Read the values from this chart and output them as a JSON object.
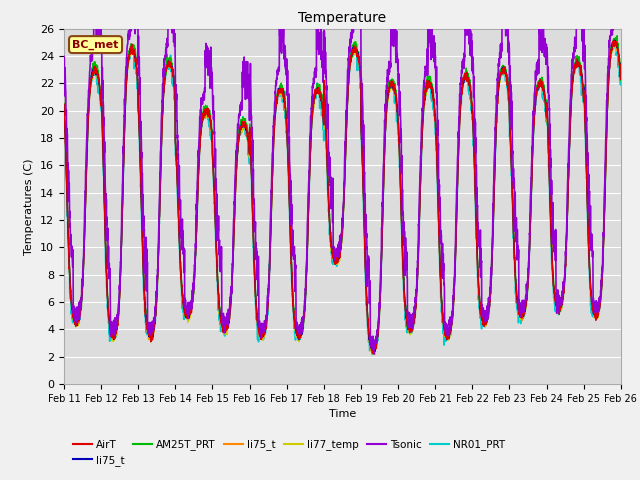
{
  "title": "Temperature",
  "xlabel": "Time",
  "ylabel": "Temperatures (C)",
  "ylim": [
    0,
    26
  ],
  "yticks": [
    0,
    2,
    4,
    6,
    8,
    10,
    12,
    14,
    16,
    18,
    20,
    22,
    24,
    26
  ],
  "date_labels": [
    "Feb 11",
    "Feb 12",
    "Feb 13",
    "Feb 14",
    "Feb 15",
    "Feb 16",
    "Feb 17",
    "Feb 18",
    "Feb 19",
    "Feb 20",
    "Feb 21",
    "Feb 22",
    "Feb 23",
    "Feb 24",
    "Feb 25",
    "Feb 26"
  ],
  "annotation_text": "BC_met",
  "annotation_facecolor": "#FFFF99",
  "annotation_edgecolor": "#8B4513",
  "annotation_textcolor": "#8B0000",
  "series": {
    "AirT": {
      "color": "#DD0000",
      "lw": 1.0
    },
    "li75_blue": {
      "color": "#0000BB",
      "lw": 1.0
    },
    "AM25T_PRT": {
      "color": "#00BB00",
      "lw": 1.0
    },
    "li75_orange": {
      "color": "#FF8800",
      "lw": 1.0
    },
    "li77_temp": {
      "color": "#CCCC00",
      "lw": 1.0
    },
    "Tsonic": {
      "color": "#9400D3",
      "lw": 1.2
    },
    "NR01_PRT": {
      "color": "#00CCCC",
      "lw": 1.2
    }
  },
  "day_maxes": [
    23.0,
    24.5,
    23.5,
    20.0,
    19.0,
    21.5,
    21.5,
    24.5,
    22.0,
    22.0,
    22.5,
    23.0,
    22.0,
    23.5,
    25.0,
    26.0
  ],
  "day_mins": [
    4.5,
    3.5,
    3.5,
    5.0,
    4.0,
    3.5,
    3.5,
    9.0,
    2.5,
    4.0,
    3.5,
    4.5,
    5.0,
    5.5,
    5.0,
    9.0
  ],
  "background_color": "#DCDCDC",
  "fig_facecolor": "#F0F0F0",
  "grid_color": "#FFFFFF",
  "n_points": 2880,
  "days": 15
}
